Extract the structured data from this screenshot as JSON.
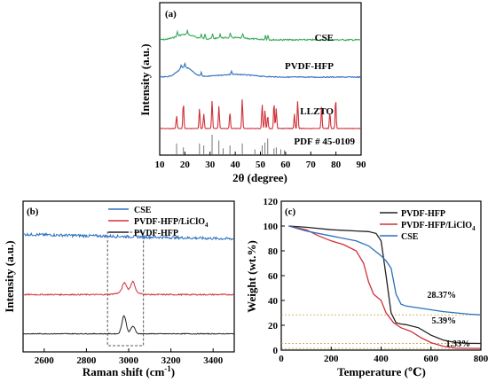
{
  "chart_data": [
    {
      "id": "a",
      "type": "line",
      "panel_label": "(a)",
      "xlabel": "2θ (degree)",
      "ylabel": "Intensity (a.u.)",
      "xlim": [
        10,
        90
      ],
      "x_ticks": [
        "10",
        "20",
        "30",
        "40",
        "50",
        "60",
        "70",
        "80",
        "90"
      ],
      "series": [
        {
          "name": "CSE",
          "color": "#3aaa5c",
          "peaks": [
            17,
            21,
            26.5,
            28,
            31,
            34,
            38,
            43,
            52,
            53
          ]
        },
        {
          "name": "PVDF-HFP",
          "color": "#2c6fbf",
          "peaks": [
            18.5,
            20,
            26.5,
            38.5
          ]
        },
        {
          "name": "LLZTO",
          "color": "#d0303a",
          "peaks": [
            16.7,
            19.4,
            25.8,
            27.5,
            30.8,
            33.5,
            37.9,
            42.8,
            50.7,
            51.8,
            52.9,
            55.4,
            56.3,
            63.5,
            64.8,
            74.3,
            77.6,
            79.9
          ]
        },
        {
          "name": "PDF # 45-0109",
          "color": "#777777",
          "sticks": [
            {
              "x": 16.7,
              "h": 0.55
            },
            {
              "x": 19.4,
              "h": 0.35
            },
            {
              "x": 25.8,
              "h": 0.55
            },
            {
              "x": 27.5,
              "h": 0.45
            },
            {
              "x": 30.8,
              "h": 1.0
            },
            {
              "x": 33.5,
              "h": 0.7
            },
            {
              "x": 35.2,
              "h": 0.3
            },
            {
              "x": 37.9,
              "h": 0.45
            },
            {
              "x": 42.8,
              "h": 0.55
            },
            {
              "x": 47.8,
              "h": 0.25
            },
            {
              "x": 50.7,
              "h": 0.45
            },
            {
              "x": 51.8,
              "h": 0.6
            },
            {
              "x": 52.9,
              "h": 0.8
            },
            {
              "x": 55.4,
              "h": 0.3
            },
            {
              "x": 56.3,
              "h": 0.35
            },
            {
              "x": 58.1,
              "h": 0.25
            },
            {
              "x": 59.5,
              "h": 0.2
            }
          ]
        }
      ]
    },
    {
      "id": "b",
      "type": "line",
      "panel_label": "(b)",
      "xlabel": "Raman shift (cm",
      "xlabel_sup": "-1",
      "xlabel_end": ")",
      "ylabel": "Intensity (a.u.)",
      "xlim": [
        2500,
        3500
      ],
      "x_ticks": [
        "2600",
        "2800",
        "3000",
        "3200",
        "3400"
      ],
      "highlight_x": [
        2900,
        3070
      ],
      "series": [
        {
          "name": "CSE",
          "color": "#2c6fbf",
          "offset": 0.78
        },
        {
          "name": "PVDF-HFP/LiClO",
          "name_sub": "4",
          "color": "#d0303a",
          "offset": 0.38,
          "peaks": [
            2980,
            3020
          ]
        },
        {
          "name": "PVDF-HFP",
          "color": "#222222",
          "offset": 0.12,
          "peaks": [
            2978,
            3020
          ]
        }
      ]
    },
    {
      "id": "c",
      "type": "line",
      "panel_label": "(c)",
      "xlabel": "Temperature (℃)",
      "ylabel": "Weight (wt.%)",
      "xlim": [
        0,
        800
      ],
      "ylim": [
        0,
        120
      ],
      "x_ticks": [
        "0",
        "200",
        "400",
        "600",
        "800"
      ],
      "y_ticks": [
        "0",
        "20",
        "40",
        "60",
        "80",
        "100",
        "120"
      ],
      "series": [
        {
          "name": "PVDF-HFP",
          "color": "#222222",
          "x": [
            30,
            100,
            200,
            300,
            350,
            380,
            400,
            420,
            440,
            460,
            480,
            500,
            550,
            600,
            650,
            700,
            750,
            800
          ],
          "y": [
            100,
            99,
            97,
            96,
            95.5,
            94,
            88,
            60,
            30,
            22,
            21,
            20.5,
            18,
            12,
            8,
            6,
            5.5,
            5.39
          ]
        },
        {
          "name": "PVDF-HFP/LiClO",
          "name_sub": "4",
          "color": "#d0303a",
          "x": [
            30,
            100,
            150,
            200,
            250,
            300,
            330,
            350,
            370,
            400,
            420,
            450,
            480,
            520,
            560,
            600,
            650,
            700,
            750,
            800
          ],
          "y": [
            100,
            97,
            92,
            88,
            85,
            80,
            70,
            55,
            45,
            40,
            30,
            22,
            18,
            15,
            10,
            6,
            3,
            1.6,
            1.4,
            1.33
          ]
        },
        {
          "name": "CSE",
          "color": "#2c6fbf",
          "x": [
            30,
            100,
            200,
            300,
            350,
            400,
            420,
            440,
            460,
            480,
            500,
            550,
            600,
            650,
            700,
            750,
            800
          ],
          "y": [
            100,
            96,
            92,
            88,
            84,
            76,
            72,
            66,
            45,
            37,
            35.5,
            34,
            32.5,
            31,
            30,
            29,
            28.37
          ]
        }
      ],
      "annotations": [
        "28.37%",
        "5.39%",
        "1.33%"
      ],
      "reference_lines": [
        28.37,
        5.39,
        1.33
      ]
    }
  ]
}
